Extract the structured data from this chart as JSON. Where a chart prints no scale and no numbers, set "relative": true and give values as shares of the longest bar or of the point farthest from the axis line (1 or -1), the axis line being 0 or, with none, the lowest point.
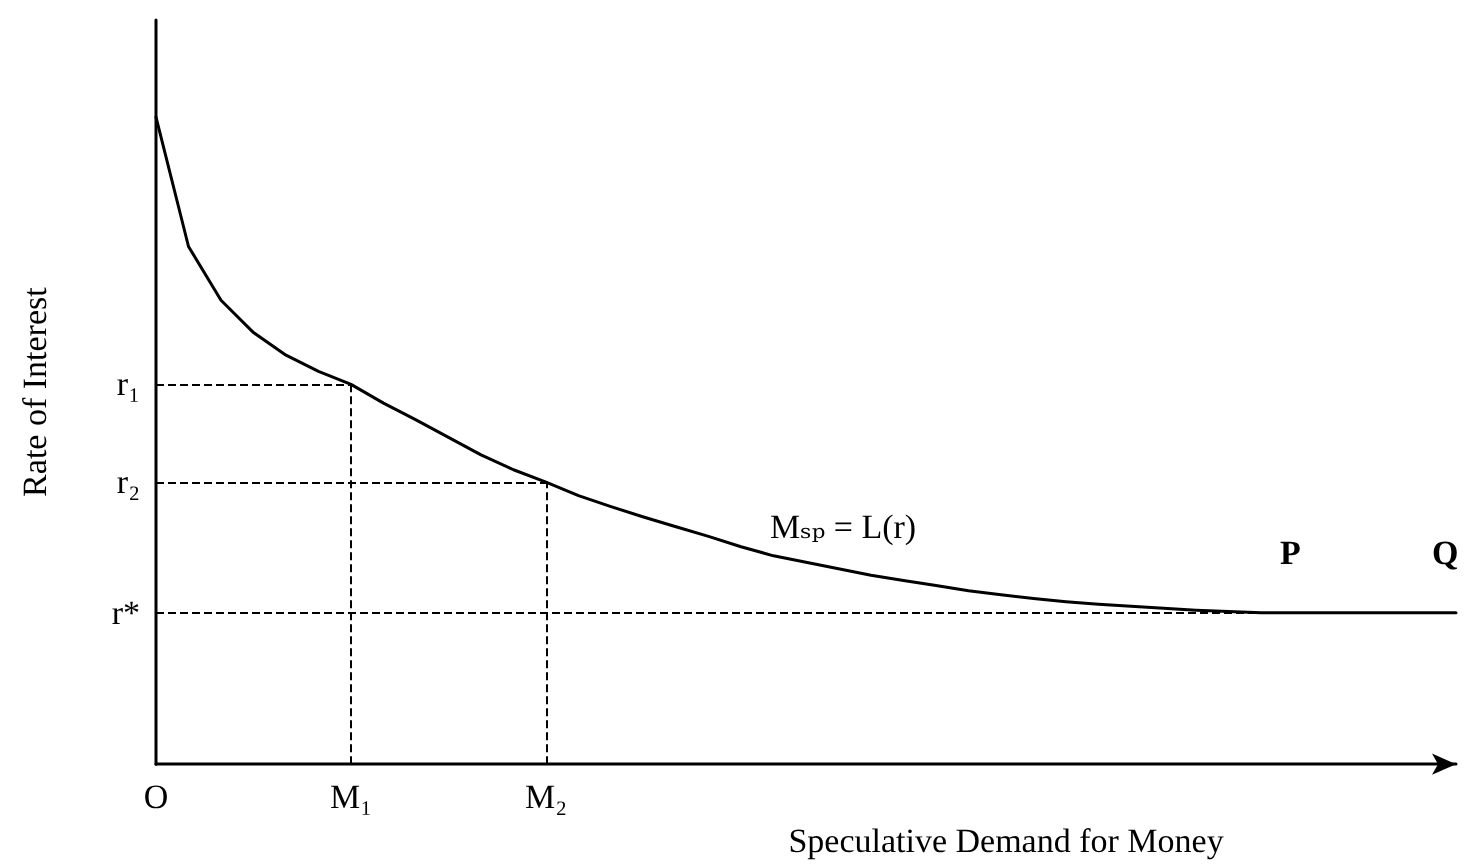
{
  "chart_data": {
    "type": "line",
    "relative": true,
    "xlabel": "Speculative Demand for Money",
    "ylabel": "Rate of Interest",
    "categories": [
      "O",
      null,
      null,
      null,
      null,
      null,
      "M₁",
      null,
      null,
      null,
      null,
      null,
      "M₂",
      null,
      null,
      null,
      null,
      null,
      null,
      null,
      null,
      null,
      null,
      null,
      null,
      null,
      null,
      null,
      null,
      null,
      null,
      null,
      null,
      null,
      null,
      null,
      null,
      null,
      null,
      null,
      null
    ],
    "series": [
      {
        "color": "#000000",
        "values": [
          1,
          0.8,
          0.717,
          0.667,
          0.632,
          0.607,
          0.587,
          0.558,
          0.532,
          0.505,
          0.478,
          0.455,
          0.436,
          0.415,
          0.398,
          0.382,
          0.367,
          0.352,
          0.336,
          0.322,
          0.312,
          0.302,
          0.292,
          0.284,
          0.276,
          0.268,
          0.262,
          0.256,
          0.251,
          0.247,
          0.244,
          0.241,
          0.238,
          0.236,
          0.234,
          0.234,
          0.234,
          0.234,
          0.234,
          0.234,
          0.234
        ]
      }
    ],
    "tick_labels": "x",
    "grid": false,
    "marker": "none",
    "line_style": "solid",
    "ref_lines": [
      {
        "axis": "y",
        "value": 0.587,
        "label": "r₁",
        "line_style": "dashed",
        "color": "#000000"
      },
      {
        "axis": "y",
        "value": 0.436,
        "label": "r₂",
        "line_style": "dashed",
        "color": "#000000"
      },
      {
        "axis": "y",
        "value": 0.234,
        "label": "r*",
        "line_style": "dashed",
        "color": "#000000"
      },
      {
        "axis": "x",
        "value": "M₁",
        "line_style": "dashed",
        "color": "#000000"
      },
      {
        "axis": "x",
        "value": "M₂",
        "line_style": "dashed",
        "color": "#000000"
      }
    ],
    "annotations": [
      "Mₛₚ = L(r)",
      "P",
      "Q"
    ]
  }
}
